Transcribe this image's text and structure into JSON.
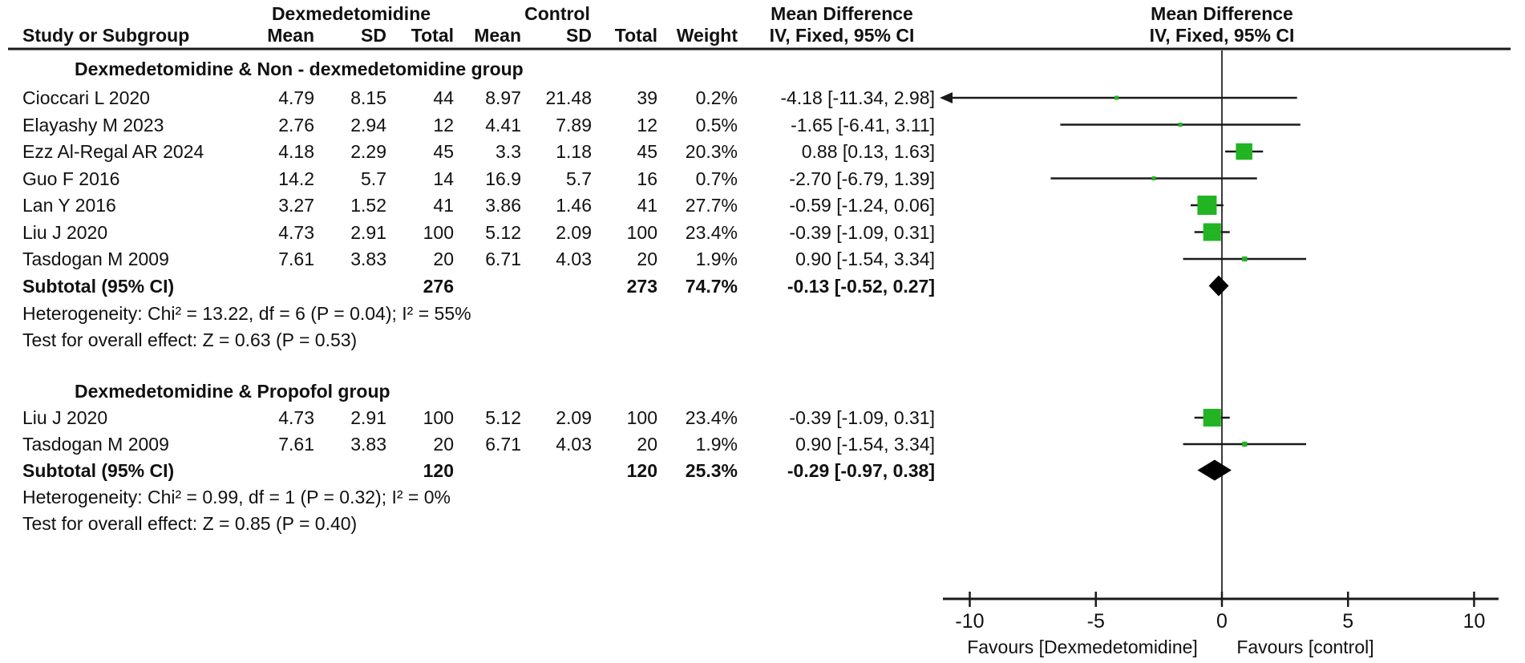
{
  "chart_data": {
    "type": "forest",
    "effect_model": "IV, Fixed, 95% CI",
    "header": {
      "study_col": "Study or Subgroup",
      "experimental_group": "Dexmedetomidine",
      "control_group": "Control",
      "mean": "Mean",
      "sd": "SD",
      "total": "Total",
      "weight": "Weight",
      "md_text_col": "Mean Difference",
      "md_plot_col": "Mean Difference",
      "ci_text_col": "IV, Fixed, 95% CI",
      "ci_plot_col": "IV, Fixed, 95% CI"
    },
    "groups": [
      {
        "name": "Dexmedetomidine & Non - dexmedetomidine group",
        "studies": [
          {
            "study": "Cioccari L 2020",
            "mean1": "4.79",
            "sd1": "8.15",
            "total1": "44",
            "mean2": "8.97",
            "sd2": "21.48",
            "total2": "39",
            "weight": "0.2%",
            "ci_text": "-4.18 [-11.34, 2.98]",
            "md": -4.18,
            "lo": -11.34,
            "hi": 2.98,
            "weight_pct": 0.2
          },
          {
            "study": "Elayashy M 2023",
            "mean1": "2.76",
            "sd1": "2.94",
            "total1": "12",
            "mean2": "4.41",
            "sd2": "7.89",
            "total2": "12",
            "weight": "0.5%",
            "ci_text": "-1.65 [-6.41, 3.11]",
            "md": -1.65,
            "lo": -6.41,
            "hi": 3.11,
            "weight_pct": 0.5
          },
          {
            "study": "Ezz Al-Regal AR 2024",
            "mean1": "4.18",
            "sd1": "2.29",
            "total1": "45",
            "mean2": "3.3",
            "sd2": "1.18",
            "total2": "45",
            "weight": "20.3%",
            "ci_text": "0.88 [0.13, 1.63]",
            "md": 0.88,
            "lo": 0.13,
            "hi": 1.63,
            "weight_pct": 20.3
          },
          {
            "study": "Guo F 2016",
            "mean1": "14.2",
            "sd1": "5.7",
            "total1": "14",
            "mean2": "16.9",
            "sd2": "5.7",
            "total2": "16",
            "weight": "0.7%",
            "ci_text": "-2.70 [-6.79, 1.39]",
            "md": -2.7,
            "lo": -6.79,
            "hi": 1.39,
            "weight_pct": 0.7
          },
          {
            "study": "Lan Y 2016",
            "mean1": "3.27",
            "sd1": "1.52",
            "total1": "41",
            "mean2": "3.86",
            "sd2": "1.46",
            "total2": "41",
            "weight": "27.7%",
            "ci_text": "-0.59 [-1.24, 0.06]",
            "md": -0.59,
            "lo": -1.24,
            "hi": 0.06,
            "weight_pct": 27.7
          },
          {
            "study": "Liu J 2020",
            "mean1": "4.73",
            "sd1": "2.91",
            "total1": "100",
            "mean2": "5.12",
            "sd2": "2.09",
            "total2": "100",
            "weight": "23.4%",
            "ci_text": "-0.39 [-1.09, 0.31]",
            "md": -0.39,
            "lo": -1.09,
            "hi": 0.31,
            "weight_pct": 23.4
          },
          {
            "study": "Tasdogan M 2009",
            "mean1": "7.61",
            "sd1": "3.83",
            "total1": "20",
            "mean2": "6.71",
            "sd2": "4.03",
            "total2": "20",
            "weight": "1.9%",
            "ci_text": "0.90 [-1.54, 3.34]",
            "md": 0.9,
            "lo": -1.54,
            "hi": 3.34,
            "weight_pct": 1.9
          }
        ],
        "subtotal": {
          "label": "Subtotal (95% CI)",
          "total1": "276",
          "total2": "273",
          "weight": "74.7%",
          "ci_text": "-0.13 [-0.52, 0.27]",
          "md": -0.13,
          "lo": -0.52,
          "hi": 0.27
        },
        "heterogeneity": "Heterogeneity: Chi² = 13.22, df = 6 (P = 0.04); I² = 55%",
        "overall_effect": "Test for overall effect: Z = 0.63 (P = 0.53)"
      },
      {
        "name": "Dexmedetomidine & Propofol group",
        "studies": [
          {
            "study": "Liu J 2020",
            "mean1": "4.73",
            "sd1": "2.91",
            "total1": "100",
            "mean2": "5.12",
            "sd2": "2.09",
            "total2": "100",
            "weight": "23.4%",
            "ci_text": "-0.39 [-1.09, 0.31]",
            "md": -0.39,
            "lo": -1.09,
            "hi": 0.31,
            "weight_pct": 23.4
          },
          {
            "study": "Tasdogan M 2009",
            "mean1": "7.61",
            "sd1": "3.83",
            "total1": "20",
            "mean2": "6.71",
            "sd2": "4.03",
            "total2": "20",
            "weight": "1.9%",
            "ci_text": "0.90 [-1.54, 3.34]",
            "md": 0.9,
            "lo": -1.54,
            "hi": 3.34,
            "weight_pct": 1.9
          }
        ],
        "subtotal": {
          "label": "Subtotal (95% CI)",
          "total1": "120",
          "total2": "120",
          "weight": "25.3%",
          "ci_text": "-0.29 [-0.97, 0.38]",
          "md": -0.29,
          "lo": -0.97,
          "hi": 0.38
        },
        "heterogeneity": "Heterogeneity: Chi² = 0.99, df = 1 (P = 0.32); I² = 0%",
        "overall_effect": "Test for overall effect: Z = 0.85 (P = 0.40)"
      }
    ],
    "axis": {
      "min": -10,
      "max": 10,
      "tick_values": [
        -10,
        -5,
        0,
        5,
        10
      ],
      "tick_labels": [
        "-10",
        "-5",
        "0",
        "5",
        "10"
      ],
      "favours_left": "Favours [Dexmedetomidine]",
      "favours_right": "Favours [control]"
    },
    "colors": {
      "square": "#22b422",
      "diamond": "#000000",
      "line": "#1a1a1a"
    }
  }
}
